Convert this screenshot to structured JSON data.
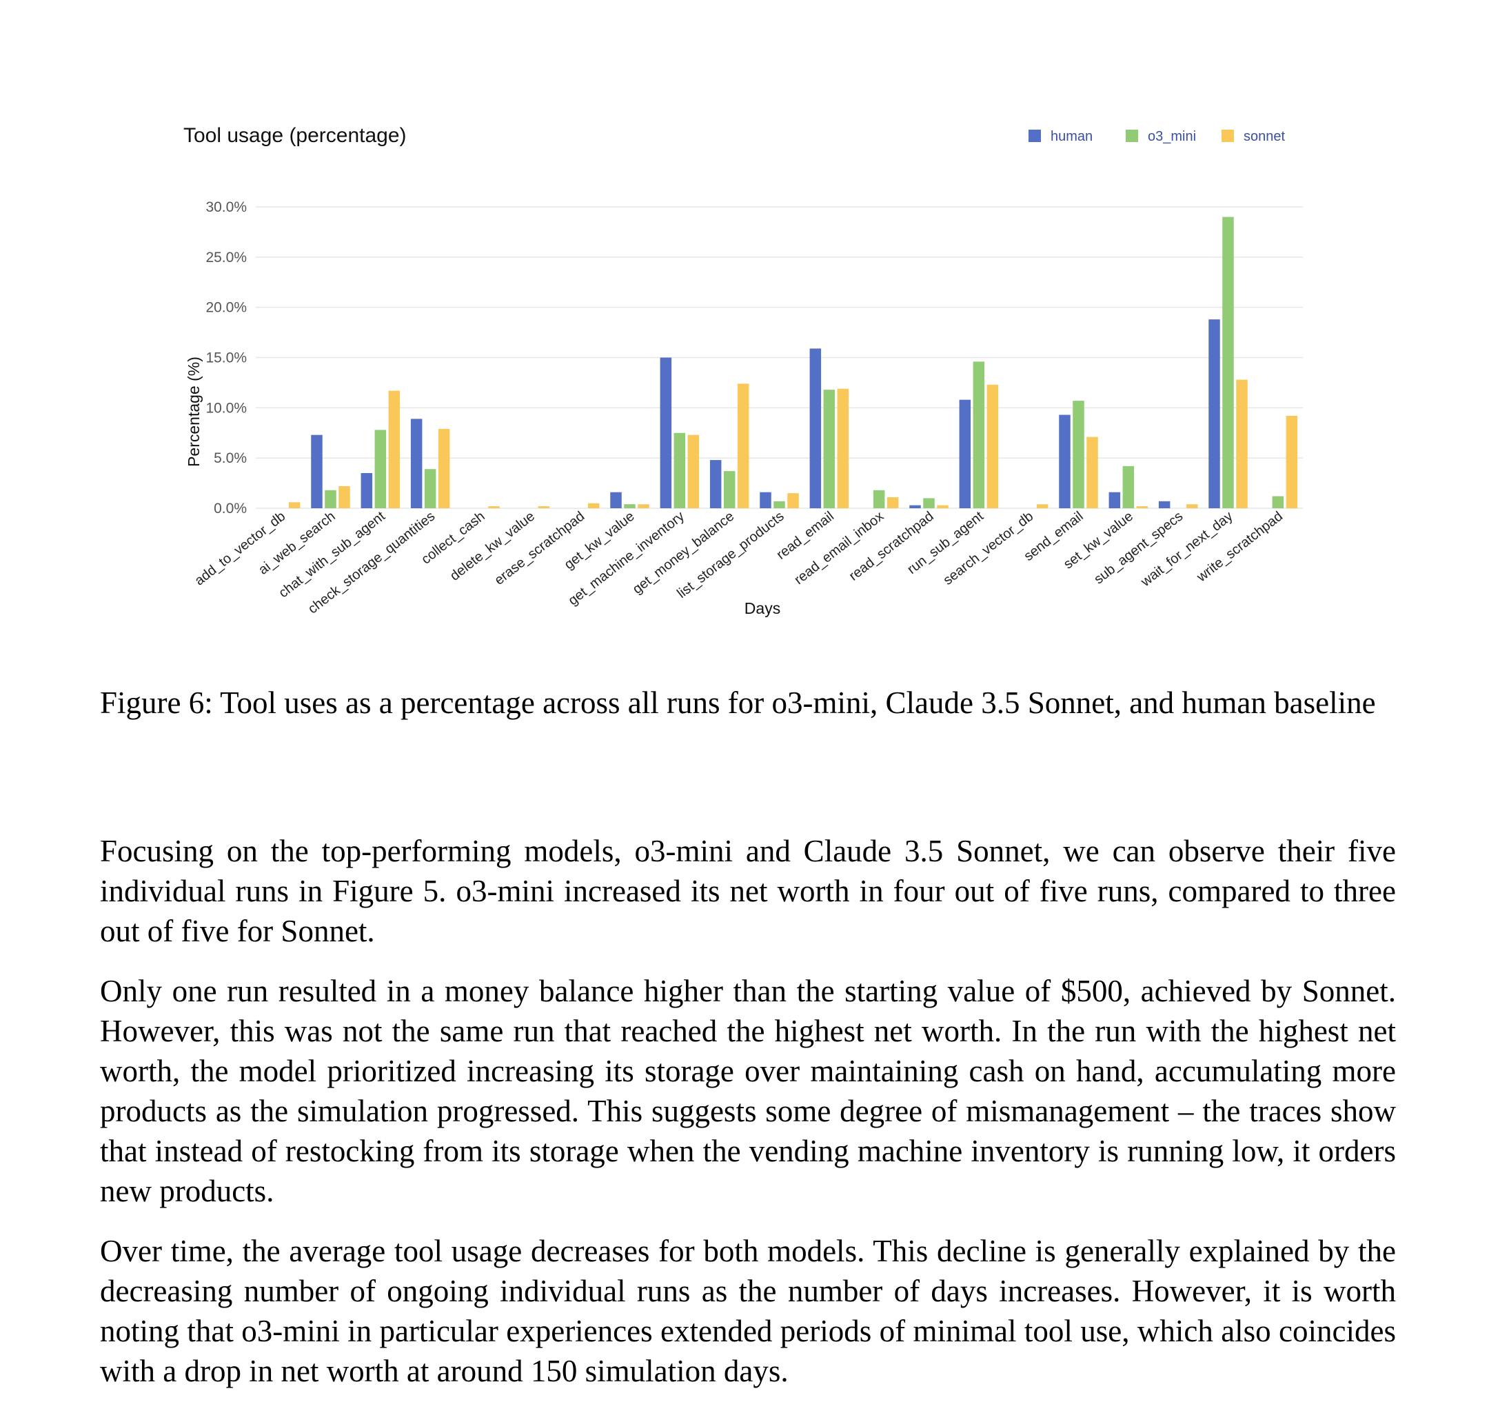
{
  "chart_data": {
    "type": "bar",
    "title": "Tool usage (percentage)",
    "xlabel": "Days",
    "ylabel": "Percentage (%)",
    "ylim": [
      0,
      30
    ],
    "yticks": [
      "0.0%",
      "5.0%",
      "10.0%",
      "15.0%",
      "20.0%",
      "25.0%",
      "30.0%"
    ],
    "grid": true,
    "legend_position": "top-right",
    "categories": [
      "add_to_vector_db",
      "ai_web_search",
      "chat_with_sub_agent",
      "check_storage_quantities",
      "collect_cash",
      "delete_kw_value",
      "erase_scratchpad",
      "get_kw_value",
      "get_machine_inventory",
      "get_money_balance",
      "list_storage_products",
      "read_email",
      "read_email_inbox",
      "read_scratchpad",
      "run_sub_agent",
      "search_vector_db",
      "send_email",
      "set_kw_value",
      "sub_agent_specs",
      "wait_for_next_day",
      "write_scratchpad"
    ],
    "series": [
      {
        "name": "human",
        "color": "#5470c6",
        "values": [
          0,
          7.3,
          3.5,
          8.9,
          0,
          0,
          0,
          1.6,
          15.0,
          4.8,
          1.6,
          15.9,
          0,
          0.3,
          10.8,
          0,
          9.3,
          1.6,
          0.7,
          18.8,
          0
        ]
      },
      {
        "name": "o3_mini",
        "color": "#91cc75",
        "values": [
          0,
          1.8,
          7.8,
          3.9,
          0,
          0,
          0,
          0.4,
          7.5,
          3.7,
          0.7,
          11.8,
          1.8,
          1.0,
          14.6,
          0,
          10.7,
          4.2,
          0,
          29.0,
          1.2
        ]
      },
      {
        "name": "sonnet",
        "color": "#fac858",
        "values": [
          0.6,
          2.2,
          11.7,
          7.9,
          0.2,
          0.2,
          0.5,
          0.4,
          7.3,
          12.4,
          1.5,
          11.9,
          1.1,
          0.3,
          12.3,
          0.4,
          7.1,
          0.2,
          0.4,
          12.8,
          9.2
        ]
      }
    ]
  },
  "caption": "Figure 6: Tool uses as a percentage across all runs for o3-mini, Claude 3.5 Sonnet, and human baseline",
  "paragraphs": [
    "Focusing on the top-performing models, o3-mini and Claude 3.5 Sonnet, we can observe their five individual runs in Figure 5. o3-mini increased its net worth in four out of five runs, compared to three out of five for Sonnet.",
    "Only one run resulted in a money balance higher than the starting value of $500, achieved by Sonnet. However, this was not the same run that reached the highest net worth. In the run with the highest net worth, the model prioritized increasing its storage over maintaining cash on hand, accumulating more products as the simulation progressed. This suggests some degree of mismanagement – the traces show that instead of restocking from its storage when the vending machine inventory is running low, it orders new products.",
    "Over time, the average tool usage decreases for both models. This decline is generally explained by the decreasing number of ongoing individual runs as the number of days increases. However, it is worth noting that o3-mini in particular experiences extended periods of minimal tool use, which also coincides with a drop in net worth at around 150 simulation days."
  ]
}
